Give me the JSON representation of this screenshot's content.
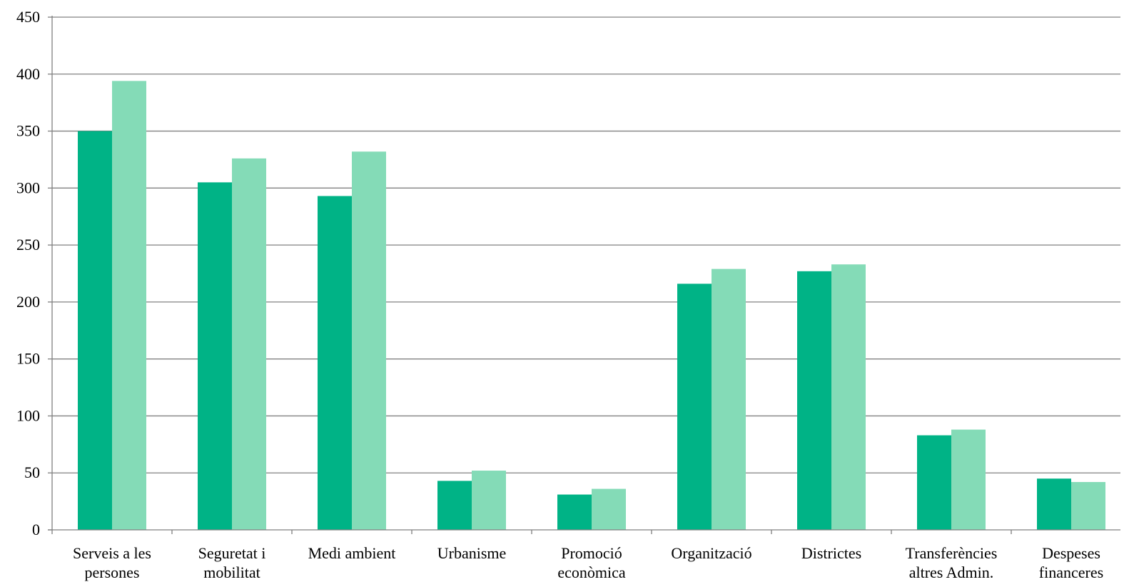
{
  "chart_data": {
    "type": "bar",
    "categories": [
      [
        "Serveis a les",
        "persones"
      ],
      [
        "Seguretat i",
        "mobilitat"
      ],
      [
        "Medi ambient"
      ],
      [
        "Urbanisme"
      ],
      [
        "Promoció",
        "econòmica"
      ],
      [
        "Organització"
      ],
      [
        "Districtes"
      ],
      [
        "Transferències",
        "altres Admin."
      ],
      [
        "Despeses",
        "financeres"
      ]
    ],
    "series": [
      {
        "values": [
          350,
          305,
          293,
          43,
          31,
          216,
          227,
          83,
          45
        ]
      },
      {
        "values": [
          394,
          326,
          332,
          52,
          36,
          229,
          233,
          88,
          42
        ]
      }
    ],
    "colors": [
      "#00b386",
      "#84dbb7"
    ],
    "yticks": [
      "0",
      "50",
      "100",
      "150",
      "200",
      "250",
      "300",
      "350",
      "400",
      "450"
    ],
    "ylim": [
      0,
      450
    ],
    "grid": true,
    "gridline_color": "#808080",
    "legend": false
  }
}
